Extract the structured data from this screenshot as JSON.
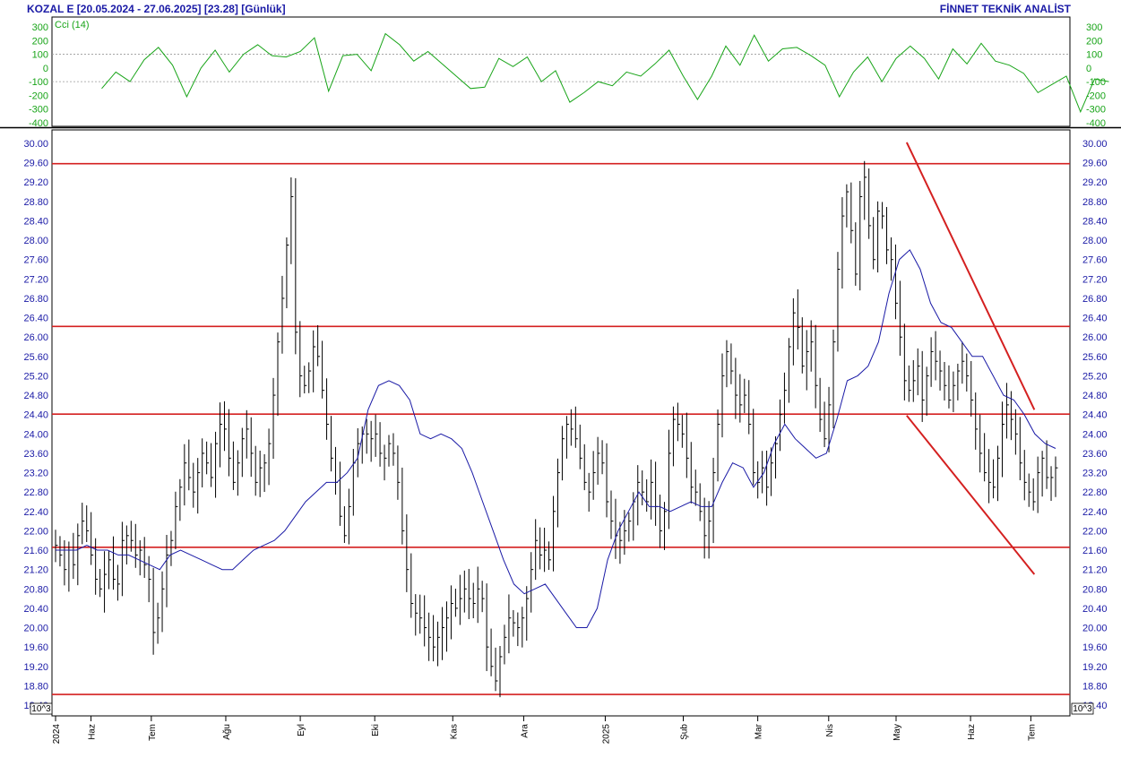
{
  "header": {
    "left": "KOZAL E  [20.05.2024 - 27.06.2025]  [23.28]  [Günlük]",
    "right": "FİNNET TEKNİK ANALİST"
  },
  "colors": {
    "text": "#1a1aa6",
    "cci": "#18a418",
    "price_bars": "#000000",
    "moving_average": "#1a1aa6",
    "levels": "#d42020",
    "grid": "#cccccc"
  },
  "icons": {
    "scale_marker": "10^3-box-icon"
  },
  "chart_data": [
    {
      "type": "line",
      "name": "cci-panel",
      "series": [
        {
          "name": "Cci (14)",
          "x": [
            0,
            4,
            8,
            12,
            16,
            20,
            24,
            28,
            32,
            36,
            40,
            44,
            48,
            52,
            56,
            60,
            64,
            68,
            72,
            76,
            80,
            84,
            88,
            92,
            96,
            100,
            104,
            108,
            112,
            116,
            120,
            124,
            128,
            132,
            136,
            140,
            144,
            148,
            152,
            156,
            160,
            164,
            168,
            172,
            176,
            180,
            184,
            188,
            192,
            196,
            200,
            204,
            208,
            212,
            216,
            220,
            224,
            228,
            232,
            236,
            240,
            244,
            248,
            252,
            256,
            260,
            264,
            268,
            272,
            276,
            280,
            284
          ],
          "values": [
            -150,
            -30,
            -100,
            60,
            150,
            20,
            -210,
            0,
            130,
            -30,
            100,
            170,
            90,
            80,
            120,
            220,
            -170,
            90,
            100,
            -20,
            250,
            170,
            50,
            120,
            30,
            -60,
            -150,
            -140,
            70,
            10,
            80,
            -100,
            -20,
            -250,
            -180,
            -100,
            -130,
            -30,
            -60,
            30,
            130,
            -60,
            -230,
            -60,
            160,
            20,
            240,
            50,
            140,
            150,
            90,
            20,
            -210,
            -30,
            80,
            -100,
            70,
            160,
            70,
            -80,
            140,
            30,
            180,
            50,
            20,
            -40,
            -180,
            -120,
            -60,
            -320,
            -80,
            -100
          ]
        }
      ],
      "xlim": [
        0,
        284
      ],
      "ylim": [
        -400,
        300
      ],
      "yticks": [
        300,
        200,
        100,
        0,
        -100,
        -200,
        -300,
        -400
      ],
      "gridlines": [
        100,
        -100
      ]
    },
    {
      "type": "bar",
      "name": "price-panel",
      "ylim": [
        18.4,
        30.2
      ],
      "yticks": [
        "30.00",
        "29.60",
        "29.20",
        "28.80",
        "28.40",
        "28.00",
        "27.60",
        "27.20",
        "26.80",
        "26.40",
        "26.00",
        "25.60",
        "25.20",
        "24.80",
        "24.40",
        "24.00",
        "23.60",
        "23.20",
        "22.80",
        "22.40",
        "22.00",
        "21.60",
        "21.20",
        "20.80",
        "20.40",
        "20.00",
        "19.60",
        "19.20",
        "18.80",
        "18.40"
      ],
      "scale_label": "10^3",
      "bar_step": 4,
      "bar_closes": [
        21.7,
        21.5,
        21.2,
        21.6,
        21.3,
        21.9,
        22.2,
        22.0,
        21.5,
        21.0,
        20.8,
        21.1,
        21.4,
        21.0,
        20.9,
        21.8,
        21.9,
        21.8,
        21.5,
        21.6,
        21.3,
        21.0,
        19.9,
        20.2,
        20.8,
        21.5,
        21.8,
        22.5,
        22.9,
        23.4,
        23.1,
        22.8,
        23.2,
        23.6,
        23.4,
        23.1,
        23.8,
        24.2,
        24.1,
        23.5,
        23.0,
        23.4,
        23.9,
        24.1,
        23.6,
        23.0,
        23.3,
        23.4,
        23.8,
        24.8,
        25.9,
        26.8,
        27.9,
        28.9,
        26.1,
        25.2,
        25.0,
        25.3,
        25.8,
        25.6,
        24.9,
        24.2,
        23.5,
        23.0,
        22.3,
        21.9,
        22.5,
        23.4,
        23.8,
        24.0,
        24.0,
        23.9,
        24.0,
        23.6,
        23.5,
        23.8,
        23.6,
        23.0,
        22.0,
        21.2,
        20.5,
        20.3,
        20.2,
        20.0,
        19.8,
        19.6,
        19.8,
        20.0,
        20.2,
        20.5,
        20.4,
        20.6,
        20.8,
        20.6,
        20.5,
        20.8,
        20.6,
        19.6,
        19.2,
        18.9,
        19.4,
        19.8,
        20.2,
        20.1,
        20.0,
        20.2,
        20.6,
        21.2,
        21.8,
        21.5,
        21.6,
        21.4,
        22.4,
        23.2,
        23.9,
        24.2,
        24.1,
        23.9,
        23.5,
        23.0,
        22.8,
        23.2,
        23.6,
        23.4,
        22.6,
        22.2,
        21.9,
        21.8,
        22.0,
        22.2,
        22.6,
        23.0,
        22.8,
        22.6,
        23.0,
        22.5,
        22.0,
        22.4,
        23.6,
        24.3,
        24.2,
        24.0,
        23.5,
        22.9,
        22.8,
        22.4,
        21.9,
        22.2,
        23.2,
        24.2,
        25.2,
        25.7,
        25.3,
        24.8,
        24.6,
        24.8,
        24.2,
        23.2,
        23.0,
        23.3,
        22.9,
        23.4,
        23.8,
        24.4,
        24.9,
        25.8,
        26.5,
        26.2,
        25.4,
        25.7,
        25.9,
        25.0,
        24.3,
        23.9,
        24.6,
        25.9,
        27.4,
        28.5,
        29.0,
        28.2,
        27.3,
        28.9,
        29.3,
        28.3,
        27.6,
        28.6,
        28.5,
        27.8,
        27.6,
        26.7,
        26.0,
        25.1,
        24.9,
        25.1,
        25.4,
        24.7,
        25.2,
        25.7,
        25.5,
        25.3,
        25.0,
        24.7,
        25.0,
        25.3,
        25.5,
        25.2,
        24.7,
        24.1,
        23.6,
        23.2,
        23.0,
        22.9,
        23.5,
        24.2,
        24.6,
        24.3,
        24.0,
        23.4,
        23.0,
        22.8,
        22.6,
        23.2,
        23.5,
        23.1,
        23.1,
        23.3
      ],
      "moving_average": [
        21.6,
        21.6,
        21.6,
        21.7,
        21.6,
        21.6,
        21.5,
        21.5,
        21.4,
        21.3,
        21.2,
        21.5,
        21.6,
        21.5,
        21.4,
        21.3,
        21.2,
        21.2,
        21.4,
        21.6,
        21.7,
        21.8,
        22.0,
        22.3,
        22.6,
        22.8,
        23.0,
        23.0,
        23.2,
        23.5,
        24.5,
        25.0,
        25.1,
        25.0,
        24.7,
        24.0,
        23.9,
        24.0,
        23.9,
        23.7,
        23.2,
        22.6,
        22.0,
        21.4,
        20.9,
        20.7,
        20.8,
        20.9,
        20.6,
        20.3,
        20.0,
        20.0,
        20.4,
        21.4,
        22.0,
        22.4,
        22.8,
        22.5,
        22.5,
        22.4,
        22.5,
        22.6,
        22.5,
        22.5,
        23.0,
        23.4,
        23.3,
        22.9,
        23.2,
        23.8,
        24.2,
        23.9,
        23.7,
        23.5,
        23.6,
        24.3,
        25.1,
        25.2,
        25.4,
        25.9,
        26.9,
        27.6,
        27.8,
        27.4,
        26.7,
        26.3,
        26.2,
        25.9,
        25.6,
        25.6,
        25.2,
        24.8,
        24.7,
        24.4,
        24.0,
        23.8,
        23.7
      ],
      "moving_average_step": 12,
      "horizontal_levels": [
        29.58,
        26.22,
        24.41,
        21.66,
        18.62
      ],
      "trendlines": [
        {
          "from": [
            240,
            30.02
          ],
          "to": [
            276,
            24.5
          ]
        },
        {
          "from": [
            240,
            24.38
          ],
          "to": [
            276,
            21.1
          ]
        }
      ]
    }
  ],
  "x_axis": {
    "labels": [
      "2024",
      "Haz",
      "Tem",
      "Ağu",
      "Eyl",
      "Eki",
      "Kas",
      "Ara",
      "2025",
      "Şub",
      "Mar",
      "Nis",
      "May",
      "Haz",
      "Tem"
    ],
    "positions": [
      0,
      10,
      27,
      48,
      69,
      90,
      112,
      132,
      155,
      177,
      198,
      218,
      237,
      258,
      275
    ]
  }
}
